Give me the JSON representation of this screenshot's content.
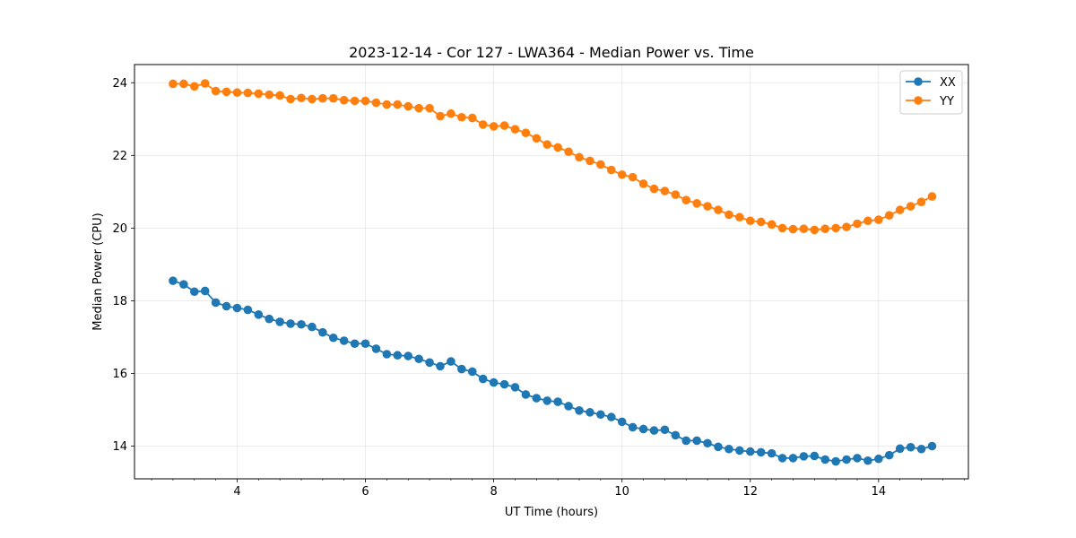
{
  "chart_data": {
    "type": "line",
    "title": "2023-12-14 - Cor 127 - LWA364 - Median Power vs. Time",
    "xlabel": "UT Time (hours)",
    "ylabel": "Median Power (CPU)",
    "xlim": [
      2.4,
      15.4
    ],
    "ylim": [
      13.1,
      24.5
    ],
    "xticks": [
      4,
      6,
      8,
      10,
      12,
      14
    ],
    "xtick_labels": [
      "4",
      "6",
      "8",
      "10",
      "12",
      "14"
    ],
    "yticks": [
      14,
      16,
      18,
      20,
      22,
      24
    ],
    "ytick_labels": [
      "14",
      "16",
      "18",
      "20",
      "22",
      "24"
    ],
    "x_minor_step": 0.333333,
    "grid": true,
    "legend_position": "top-right",
    "x": [
      3.0,
      3.1667,
      3.3333,
      3.5,
      3.6667,
      3.8333,
      4.0,
      4.1667,
      4.3333,
      4.5,
      4.6667,
      4.8333,
      5.0,
      5.1667,
      5.3333,
      5.5,
      5.6667,
      5.8333,
      6.0,
      6.1667,
      6.3333,
      6.5,
      6.6667,
      6.8333,
      7.0,
      7.1667,
      7.3333,
      7.5,
      7.6667,
      7.8333,
      8.0,
      8.1667,
      8.3333,
      8.5,
      8.6667,
      8.8333,
      9.0,
      9.1667,
      9.3333,
      9.5,
      9.6667,
      9.8333,
      10.0,
      10.1667,
      10.3333,
      10.5,
      10.6667,
      10.8333,
      11.0,
      11.1667,
      11.3333,
      11.5,
      11.6667,
      11.8333,
      12.0,
      12.1667,
      12.3333,
      12.5,
      12.6667,
      12.8333,
      13.0,
      13.1667,
      13.3333,
      13.5,
      13.6667,
      13.8333,
      14.0,
      14.1667,
      14.3333,
      14.5,
      14.6667,
      14.8333
    ],
    "series": [
      {
        "name": "XX",
        "color": "#1f77b4",
        "values": [
          18.55,
          18.45,
          18.25,
          18.27,
          17.95,
          17.85,
          17.8,
          17.75,
          17.62,
          17.5,
          17.42,
          17.37,
          17.35,
          17.28,
          17.13,
          16.98,
          16.9,
          16.82,
          16.82,
          16.68,
          16.53,
          16.5,
          16.48,
          16.4,
          16.3,
          16.2,
          16.33,
          16.12,
          16.05,
          15.85,
          15.75,
          15.7,
          15.62,
          15.42,
          15.32,
          15.25,
          15.22,
          15.1,
          14.98,
          14.93,
          14.87,
          14.8,
          14.67,
          14.52,
          14.47,
          14.43,
          14.45,
          14.3,
          14.15,
          14.15,
          14.08,
          13.98,
          13.92,
          13.88,
          13.85,
          13.83,
          13.8,
          13.67,
          13.67,
          13.72,
          13.73,
          13.63,
          13.58,
          13.63,
          13.67,
          13.6,
          13.65,
          13.75,
          13.93,
          13.97,
          13.92,
          14.0
        ]
      },
      {
        "name": "YY",
        "color": "#ff7f0e",
        "values": [
          23.97,
          23.97,
          23.9,
          23.98,
          23.77,
          23.75,
          23.73,
          23.72,
          23.7,
          23.67,
          23.65,
          23.55,
          23.58,
          23.55,
          23.57,
          23.57,
          23.52,
          23.5,
          23.5,
          23.45,
          23.4,
          23.4,
          23.35,
          23.3,
          23.3,
          23.08,
          23.15,
          23.05,
          23.03,
          22.85,
          22.8,
          22.82,
          22.72,
          22.62,
          22.47,
          22.3,
          22.22,
          22.1,
          21.95,
          21.85,
          21.75,
          21.6,
          21.47,
          21.4,
          21.22,
          21.08,
          21.02,
          20.92,
          20.77,
          20.68,
          20.6,
          20.5,
          20.37,
          20.3,
          20.2,
          20.17,
          20.1,
          20.0,
          19.97,
          19.98,
          19.95,
          19.98,
          20.0,
          20.03,
          20.12,
          20.2,
          20.23,
          20.35,
          20.5,
          20.6,
          20.72,
          20.87
        ]
      }
    ]
  }
}
